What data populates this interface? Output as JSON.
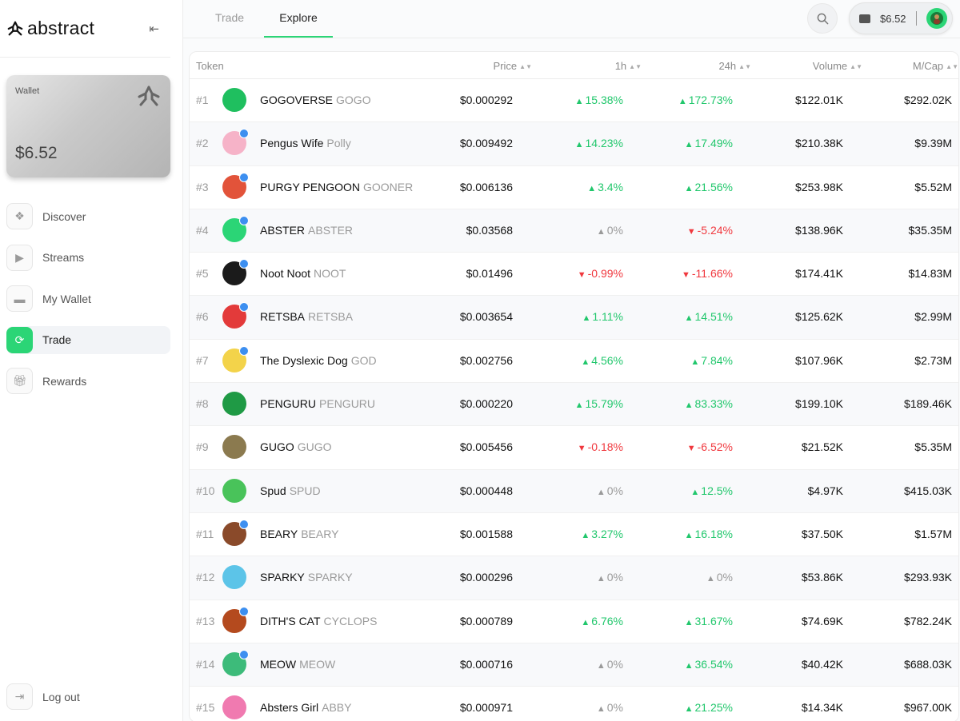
{
  "brand": {
    "name": "abstract"
  },
  "wallet": {
    "label": "Wallet",
    "amount": "$6.52"
  },
  "nav": [
    {
      "label": "Discover",
      "icon": "discover-icon",
      "active": false
    },
    {
      "label": "Streams",
      "icon": "play-icon",
      "active": false
    },
    {
      "label": "My Wallet",
      "icon": "wallet-icon",
      "active": false
    },
    {
      "label": "Trade",
      "icon": "swap-icon",
      "active": true
    },
    {
      "label": "Rewards",
      "icon": "gift-icon",
      "active": false
    }
  ],
  "logout": {
    "label": "Log out"
  },
  "tabs": {
    "trade": "Trade",
    "explore": "Explore",
    "active": "Explore"
  },
  "header": {
    "balance": "$6.52"
  },
  "table": {
    "columns": {
      "token": "Token",
      "price": "Price",
      "h1": "1h",
      "h24": "24h",
      "volume": "Volume",
      "mcap": "M/Cap"
    },
    "rows": [
      {
        "rank": "#1",
        "name": "GOGOVERSE",
        "ticker": "GOGO",
        "price": "$0.000292",
        "h1": "15.38%",
        "h1_dir": "up",
        "h24": "172.73%",
        "h24_dir": "up",
        "volume": "$122.01K",
        "mcap": "$292.02K",
        "verified": false,
        "color": "#1fbf5f"
      },
      {
        "rank": "#2",
        "name": "Pengus Wife",
        "ticker": "Polly",
        "price": "$0.009492",
        "h1": "14.23%",
        "h1_dir": "up",
        "h24": "17.49%",
        "h24_dir": "up",
        "volume": "$210.38K",
        "mcap": "$9.39M",
        "verified": true,
        "color": "#f6b3c8"
      },
      {
        "rank": "#3",
        "name": "PURGY PENGOON",
        "ticker": "GOONER",
        "price": "$0.006136",
        "h1": "3.4%",
        "h1_dir": "up",
        "h24": "21.56%",
        "h24_dir": "up",
        "volume": "$253.98K",
        "mcap": "$5.52M",
        "verified": true,
        "color": "#e2533a"
      },
      {
        "rank": "#4",
        "name": "ABSTER",
        "ticker": "ABSTER",
        "price": "$0.03568",
        "h1": "0%",
        "h1_dir": "flat",
        "h24": "-5.24%",
        "h24_dir": "down",
        "volume": "$138.96K",
        "mcap": "$35.35M",
        "verified": true,
        "color": "#2bd576"
      },
      {
        "rank": "#5",
        "name": "Noot Noot",
        "ticker": "NOOT",
        "price": "$0.01496",
        "h1": "-0.99%",
        "h1_dir": "down",
        "h24": "-11.66%",
        "h24_dir": "down",
        "volume": "$174.41K",
        "mcap": "$14.83M",
        "verified": true,
        "color": "#1b1b1b"
      },
      {
        "rank": "#6",
        "name": "RETSBA",
        "ticker": "RETSBA",
        "price": "$0.003654",
        "h1": "1.11%",
        "h1_dir": "up",
        "h24": "14.51%",
        "h24_dir": "up",
        "volume": "$125.62K",
        "mcap": "$2.99M",
        "verified": true,
        "color": "#e33a3a"
      },
      {
        "rank": "#7",
        "name": "The Dyslexic Dog",
        "ticker": "GOD",
        "price": "$0.002756",
        "h1": "4.56%",
        "h1_dir": "up",
        "h24": "7.84%",
        "h24_dir": "up",
        "volume": "$107.96K",
        "mcap": "$2.73M",
        "verified": true,
        "color": "#f3d34a"
      },
      {
        "rank": "#8",
        "name": "PENGURU",
        "ticker": "PENGURU",
        "price": "$0.000220",
        "h1": "15.79%",
        "h1_dir": "up",
        "h24": "83.33%",
        "h24_dir": "up",
        "volume": "$199.10K",
        "mcap": "$189.46K",
        "verified": false,
        "color": "#1f9a45"
      },
      {
        "rank": "#9",
        "name": "GUGO",
        "ticker": "GUGO",
        "price": "$0.005456",
        "h1": "-0.18%",
        "h1_dir": "down",
        "h24": "-6.52%",
        "h24_dir": "down",
        "volume": "$21.52K",
        "mcap": "$5.35M",
        "verified": false,
        "color": "#8b7a4f"
      },
      {
        "rank": "#10",
        "name": "Spud",
        "ticker": "SPUD",
        "price": "$0.000448",
        "h1": "0%",
        "h1_dir": "flat",
        "h24": "12.5%",
        "h24_dir": "up",
        "volume": "$4.97K",
        "mcap": "$415.03K",
        "verified": false,
        "color": "#49c35a"
      },
      {
        "rank": "#11",
        "name": "BEARY",
        "ticker": "BEARY",
        "price": "$0.001588",
        "h1": "3.27%",
        "h1_dir": "up",
        "h24": "16.18%",
        "h24_dir": "up",
        "volume": "$37.50K",
        "mcap": "$1.57M",
        "verified": true,
        "color": "#8a4a2a"
      },
      {
        "rank": "#12",
        "name": "SPARKY",
        "ticker": "SPARKY",
        "price": "$0.000296",
        "h1": "0%",
        "h1_dir": "flat",
        "h24": "0%",
        "h24_dir": "flat",
        "volume": "$53.86K",
        "mcap": "$293.93K",
        "verified": false,
        "color": "#5cc4e8"
      },
      {
        "rank": "#13",
        "name": "DITH'S CAT",
        "ticker": "CYCLOPS",
        "price": "$0.000789",
        "h1": "6.76%",
        "h1_dir": "up",
        "h24": "31.67%",
        "h24_dir": "up",
        "volume": "$74.69K",
        "mcap": "$782.24K",
        "verified": true,
        "color": "#b44a1e"
      },
      {
        "rank": "#14",
        "name": "MEOW",
        "ticker": "MEOW",
        "price": "$0.000716",
        "h1": "0%",
        "h1_dir": "flat",
        "h24": "36.54%",
        "h24_dir": "up",
        "volume": "$40.42K",
        "mcap": "$688.03K",
        "verified": true,
        "color": "#3dbb7a"
      },
      {
        "rank": "#15",
        "name": "Absters Girl",
        "ticker": "ABBY",
        "price": "$0.000971",
        "h1": "0%",
        "h1_dir": "flat",
        "h24": "21.25%",
        "h24_dir": "up",
        "volume": "$14.34K",
        "mcap": "$967.00K",
        "verified": false,
        "color": "#f07ab0"
      }
    ]
  },
  "colors": {
    "accent": "#2bd576",
    "up": "#21c76c",
    "down": "#f0383e",
    "verified": "#3d8ff0"
  }
}
